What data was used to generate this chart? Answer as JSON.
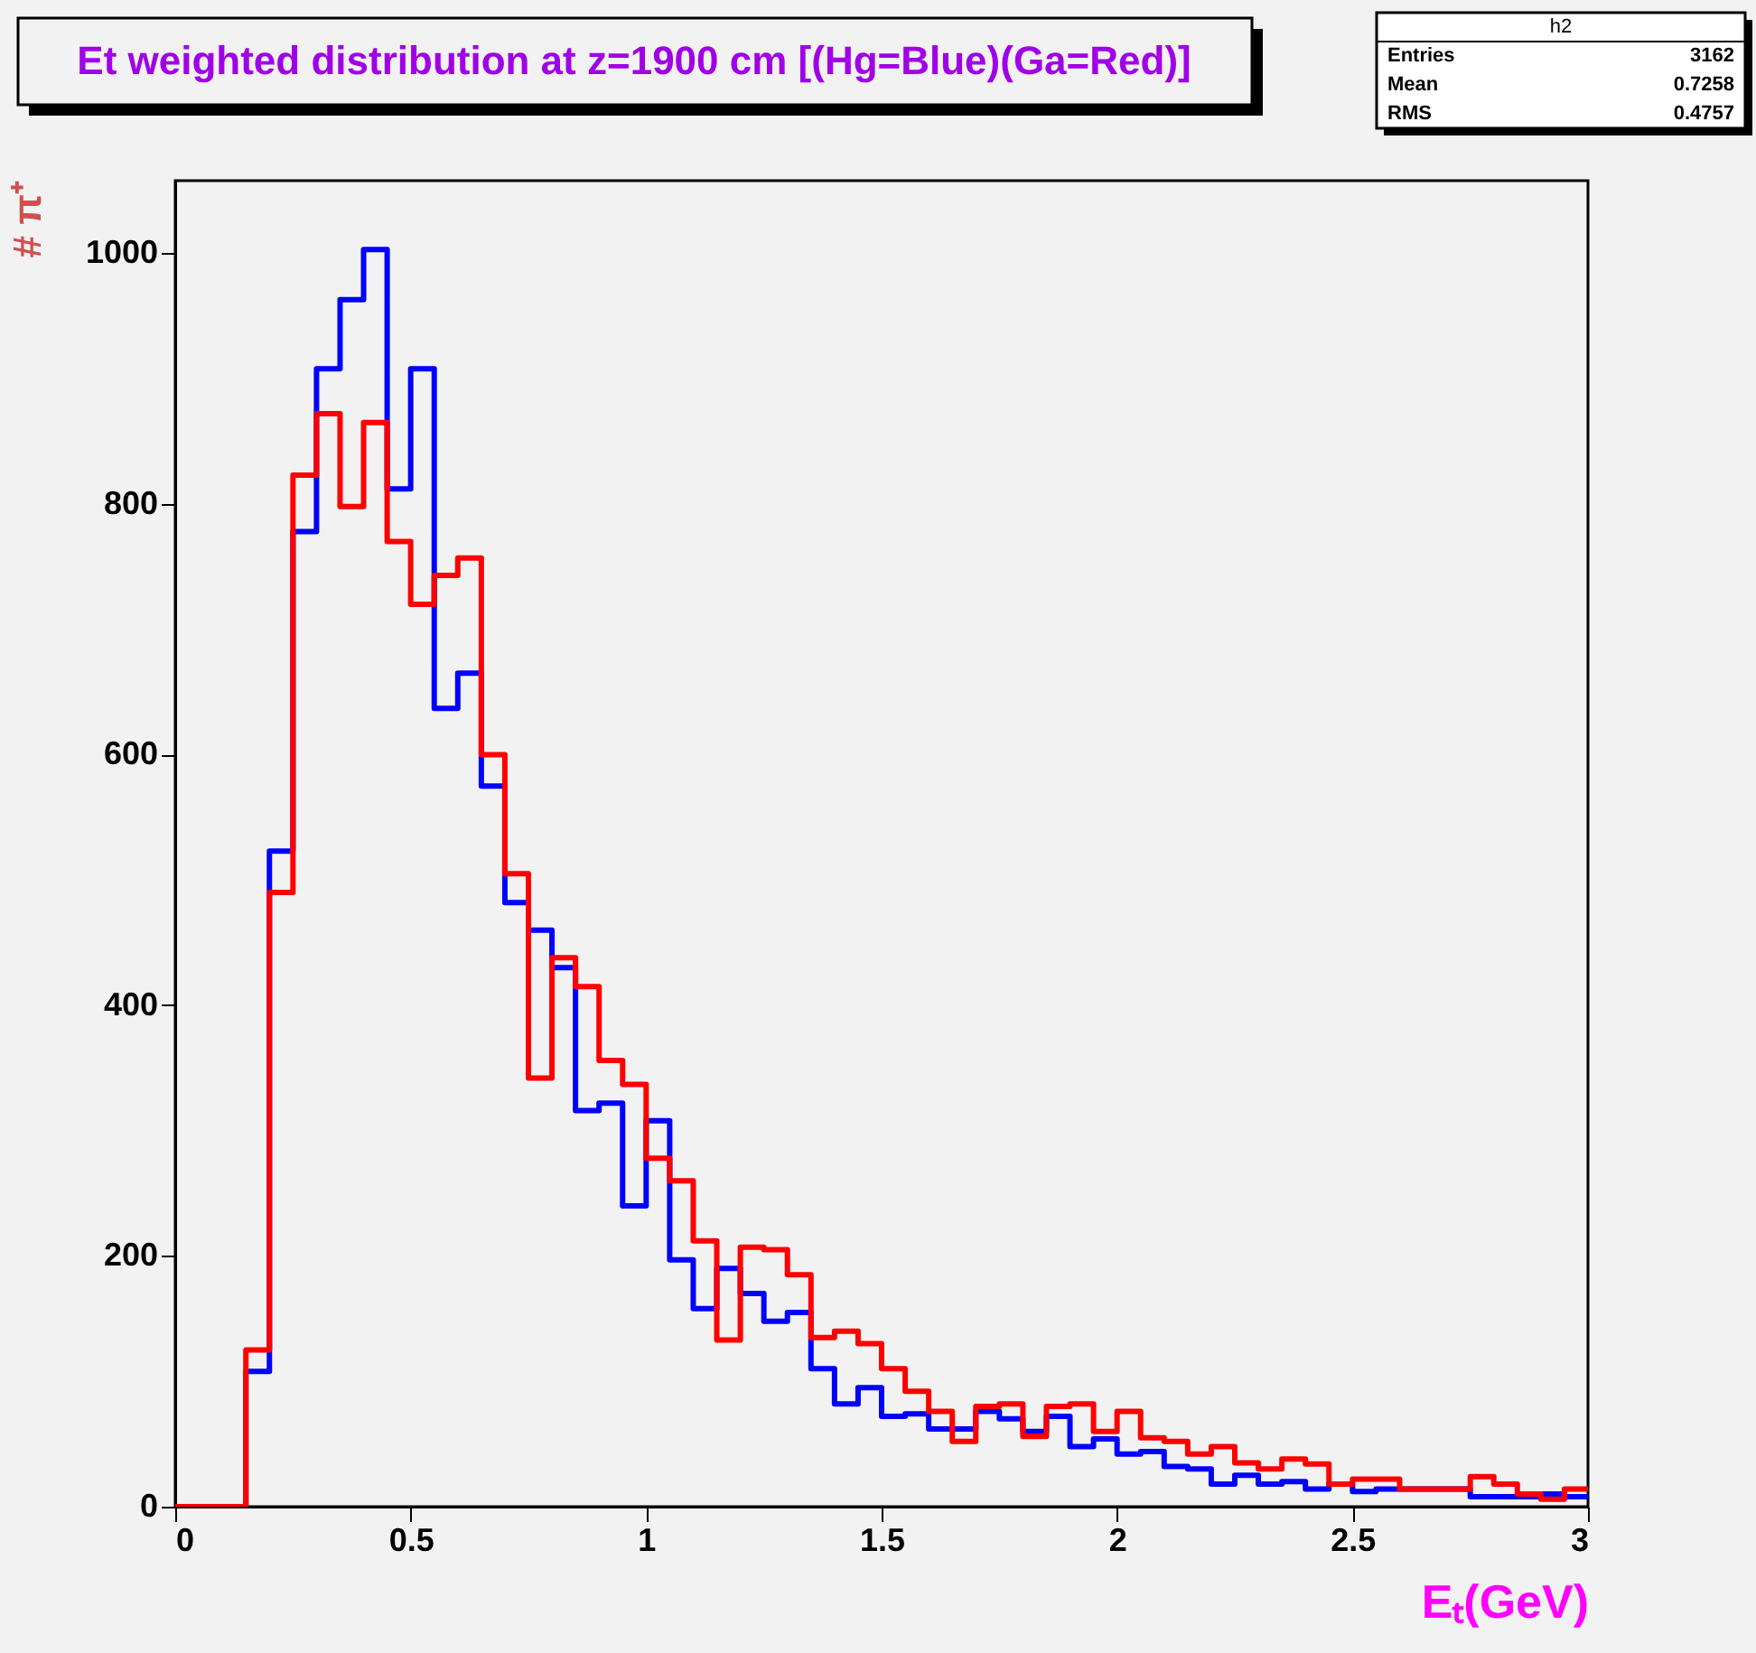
{
  "chart_data": {
    "type": "histogram",
    "title": "Et weighted distribution at z=1900 cm [(Hg=Blue)(Ga=Red)]",
    "xlabel": "Eₜ(GeV)",
    "ylabel": "# π⁺",
    "bins": [
      0,
      0.05,
      0.1,
      0.15,
      0.2,
      0.25,
      0.3,
      0.35,
      0.4,
      0.45,
      0.5,
      0.55,
      0.6,
      0.65,
      0.7,
      0.75,
      0.8,
      0.85,
      0.9,
      0.95,
      1,
      1.05,
      1.1,
      1.15,
      1.2,
      1.25,
      1.3,
      1.35,
      1.4,
      1.45,
      1.5,
      1.55,
      1.6,
      1.65,
      1.7,
      1.75,
      1.8,
      1.85,
      1.9,
      1.95,
      2,
      2.05,
      2.1,
      2.15,
      2.2,
      2.25,
      2.3,
      2.35,
      2.4,
      2.45,
      2.5,
      2.55,
      2.6,
      2.65,
      2.7,
      2.75,
      2.8,
      2.85,
      2.9,
      2.95,
      3
    ],
    "series": [
      {
        "color": "#0000ff",
        "values": [
          0,
          0,
          0,
          108,
          523,
          778,
          908,
          963,
          1003,
          812,
          908,
          637,
          665,
          575,
          482,
          460,
          430,
          316,
          322,
          240,
          308,
          197,
          158,
          190,
          170,
          148,
          155,
          110,
          82,
          95,
          72,
          74,
          62,
          62,
          76,
          70,
          60,
          72,
          48,
          54,
          42,
          44,
          32,
          30,
          18,
          25,
          18,
          20,
          14,
          18,
          12,
          14,
          14,
          14,
          14,
          8,
          8,
          8,
          10,
          8
        ]
      },
      {
        "color": "#ff0000",
        "values": [
          0,
          0,
          0,
          125,
          490,
          823,
          872,
          798,
          865,
          770,
          720,
          743,
          757,
          600,
          505,
          342,
          438,
          415,
          356,
          337,
          278,
          260,
          212,
          133,
          207,
          205,
          185,
          135,
          140,
          130,
          110,
          92,
          76,
          52,
          80,
          82,
          56,
          80,
          82,
          60,
          76,
          55,
          52,
          42,
          48,
          35,
          30,
          38,
          34,
          18,
          22,
          22,
          14,
          14,
          14,
          24,
          18,
          10,
          6,
          14
        ]
      }
    ],
    "xlim": [
      0,
      3
    ],
    "ylim": [
      0,
      1058
    ],
    "xticks": [
      0,
      0.5,
      1,
      1.5,
      2,
      2.5,
      3
    ],
    "yticks": [
      0,
      200,
      400,
      600,
      800,
      1000
    ],
    "grid": false,
    "annotations": [
      "h2",
      "Entries",
      "3162",
      "Mean",
      "0.7258",
      "RMS",
      "0.4757"
    ]
  }
}
